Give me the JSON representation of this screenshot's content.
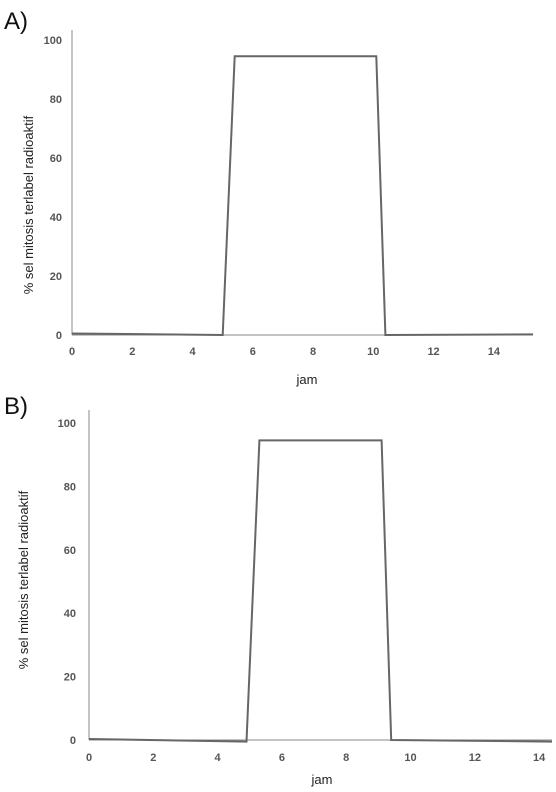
{
  "chart_data": [
    {
      "panel_label": "A)",
      "type": "line",
      "xlabel": "jam",
      "ylabel": "% sel mitosis terlabel radioaktif",
      "xlim": [
        0,
        15.3
      ],
      "ylim": [
        0,
        100
      ],
      "xticks": [
        0,
        2,
        4,
        6,
        8,
        10,
        12,
        14
      ],
      "yticks": [
        0,
        20,
        40,
        60,
        80,
        100
      ],
      "grid": false,
      "series": [
        {
          "color": "#666666",
          "x": [
            0,
            5.0,
            5.4,
            10.1,
            10.4,
            15.3
          ],
          "y": [
            0.5,
            0,
            94.5,
            94.5,
            0,
            0.2
          ]
        }
      ]
    },
    {
      "panel_label": "B)",
      "type": "line",
      "xlabel": "jam",
      "ylabel": "% sel mitosis terlabel radioaktif",
      "xlim": [
        0,
        14.4
      ],
      "ylim": [
        0,
        100
      ],
      "xticks": [
        0,
        2,
        4,
        6,
        8,
        10,
        12,
        14
      ],
      "yticks": [
        0,
        20,
        40,
        60,
        80,
        100
      ],
      "grid": false,
      "series": [
        {
          "color": "#666666",
          "x": [
            0,
            4.9,
            5.3,
            9.1,
            9.4,
            14.4
          ],
          "y": [
            0.3,
            -0.5,
            94.5,
            94.5,
            0,
            -0.5
          ]
        }
      ]
    }
  ]
}
